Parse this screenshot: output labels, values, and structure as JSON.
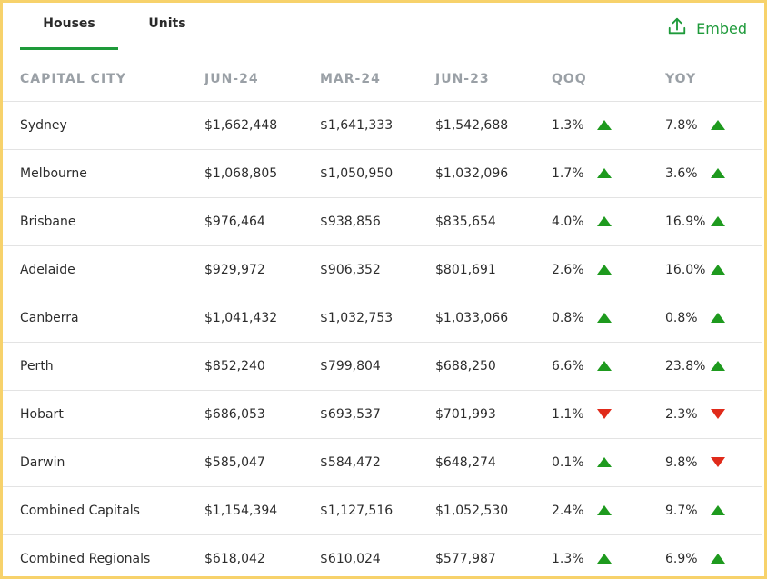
{
  "tabs": [
    {
      "label": "Houses",
      "active": true
    },
    {
      "label": "Units",
      "active": false
    }
  ],
  "embed": {
    "label": "Embed",
    "icon": "upload-icon",
    "color": "#1e9a3a"
  },
  "colors": {
    "accent": "#1e9a3a",
    "up": "#1e9a1e",
    "down": "#e02a1a",
    "border": "#f7d26b"
  },
  "table": {
    "headers": [
      "CAPITAL CITY",
      "JUN-24",
      "MAR-24",
      "JUN-23",
      "QOQ",
      "YOY"
    ],
    "rows": [
      {
        "city": "Sydney",
        "jun24": "$1,662,448",
        "mar24": "$1,641,333",
        "jun23": "$1,542,688",
        "qoq": "1.3%",
        "qoq_dir": "up",
        "yoy": "7.8%",
        "yoy_dir": "up"
      },
      {
        "city": "Melbourne",
        "jun24": "$1,068,805",
        "mar24": "$1,050,950",
        "jun23": "$1,032,096",
        "qoq": "1.7%",
        "qoq_dir": "up",
        "yoy": "3.6%",
        "yoy_dir": "up"
      },
      {
        "city": "Brisbane",
        "jun24": "$976,464",
        "mar24": "$938,856",
        "jun23": "$835,654",
        "qoq": "4.0%",
        "qoq_dir": "up",
        "yoy": "16.9%",
        "yoy_dir": "up"
      },
      {
        "city": "Adelaide",
        "jun24": "$929,972",
        "mar24": "$906,352",
        "jun23": "$801,691",
        "qoq": "2.6%",
        "qoq_dir": "up",
        "yoy": "16.0%",
        "yoy_dir": "up"
      },
      {
        "city": "Canberra",
        "jun24": "$1,041,432",
        "mar24": "$1,032,753",
        "jun23": "$1,033,066",
        "qoq": "0.8%",
        "qoq_dir": "up",
        "yoy": "0.8%",
        "yoy_dir": "up"
      },
      {
        "city": "Perth",
        "jun24": "$852,240",
        "mar24": "$799,804",
        "jun23": "$688,250",
        "qoq": "6.6%",
        "qoq_dir": "up",
        "yoy": "23.8%",
        "yoy_dir": "up"
      },
      {
        "city": "Hobart",
        "jun24": "$686,053",
        "mar24": "$693,537",
        "jun23": "$701,993",
        "qoq": "1.1%",
        "qoq_dir": "down",
        "yoy": "2.3%",
        "yoy_dir": "down"
      },
      {
        "city": "Darwin",
        "jun24": "$585,047",
        "mar24": "$584,472",
        "jun23": "$648,274",
        "qoq": "0.1%",
        "qoq_dir": "up",
        "yoy": "9.8%",
        "yoy_dir": "down"
      },
      {
        "city": "Combined Capitals",
        "jun24": "$1,154,394",
        "mar24": "$1,127,516",
        "jun23": "$1,052,530",
        "qoq": "2.4%",
        "qoq_dir": "up",
        "yoy": "9.7%",
        "yoy_dir": "up"
      },
      {
        "city": "Combined Regionals",
        "jun24": "$618,042",
        "mar24": "$610,024",
        "jun23": "$577,987",
        "qoq": "1.3%",
        "qoq_dir": "up",
        "yoy": "6.9%",
        "yoy_dir": "up"
      }
    ]
  }
}
